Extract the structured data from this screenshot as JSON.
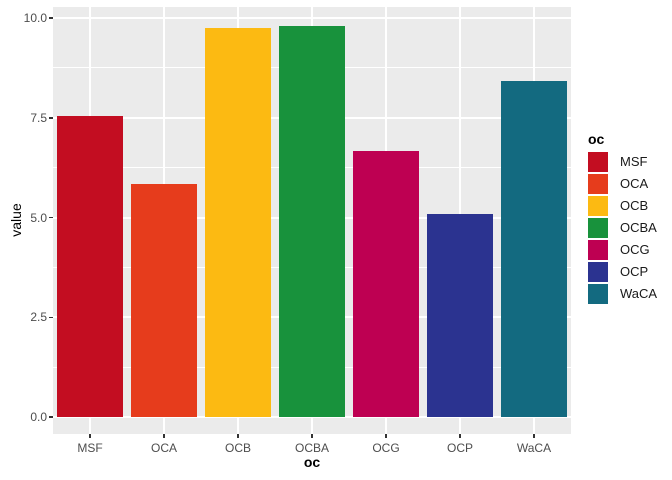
{
  "figure": {
    "background": "#FFFFFF",
    "panel_background": "#EBEBEB",
    "gridline_color": "#FFFFFF",
    "tick_color": "#333333",
    "tick_label_color": "#4D4D4D",
    "title_color": "#000000"
  },
  "chart_data": {
    "type": "bar",
    "title": "",
    "xlabel": "oc",
    "ylabel": "value",
    "legend_title": "oc",
    "legend_position": "right",
    "categories": [
      "MSF",
      "OCA",
      "OCB",
      "OCBA",
      "OCG",
      "OCP",
      "WaCA"
    ],
    "values": [
      7.54,
      5.83,
      9.76,
      9.81,
      6.66,
      5.09,
      8.43
    ],
    "colors": [
      "#C30D21",
      "#E63C1C",
      "#FCBA12",
      "#18923C",
      "#BE0052",
      "#2B3390",
      "#136A80"
    ],
    "ylim": [
      0,
      10
    ],
    "y_major_ticks": [
      0,
      2.5,
      5,
      7.5,
      10
    ],
    "y_tick_labels": [
      "0.0",
      "2.5",
      "5.0",
      "7.5",
      "10.0"
    ],
    "y_minor_ticks": [
      1.25,
      3.75,
      6.25,
      8.75
    ],
    "grid": true,
    "bar_width_fraction": 0.9
  }
}
